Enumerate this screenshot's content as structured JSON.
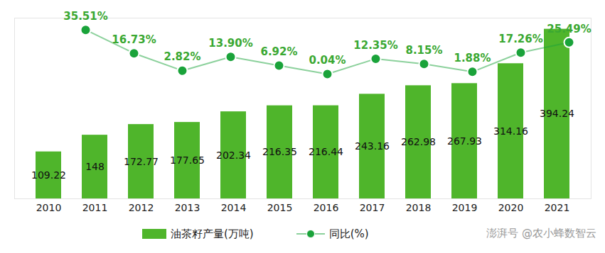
{
  "chart_data": {
    "type": "bar",
    "categories": [
      "2010",
      "2011",
      "2012",
      "2013",
      "2014",
      "2015",
      "2016",
      "2017",
      "2018",
      "2019",
      "2020",
      "2021"
    ],
    "series": [
      {
        "name": "油茶籽产量(万吨)",
        "type": "bar",
        "color": "#4fb52b",
        "values": [
          109.22,
          148,
          172.77,
          177.65,
          202.34,
          216.35,
          216.44,
          243.16,
          262.98,
          267.93,
          314.16,
          394.24
        ]
      },
      {
        "name": "同比(%)",
        "type": "line",
        "axis": "y2",
        "color": "#1aa33a",
        "marker": "circle",
        "values": [
          null,
          35.51,
          16.73,
          2.82,
          13.9,
          6.92,
          0.04,
          12.35,
          8.15,
          1.88,
          17.26,
          25.49
        ],
        "value_labels": [
          null,
          "35.51%",
          "16.73%",
          "2.82%",
          "13.90%",
          "6.92%",
          "0.04%",
          "12.35%",
          "8.15%",
          "1.88%",
          "17.26%",
          "25.49%"
        ]
      }
    ],
    "ylim": [
      0,
      420
    ],
    "yticks": [],
    "y2lim": [
      -100,
      45
    ],
    "y2ticks": [],
    "tick_labels": "x",
    "data_labels": true,
    "legend": "bottom",
    "annotations": [
      "澎湃号 @农小蜂数智云"
    ]
  }
}
